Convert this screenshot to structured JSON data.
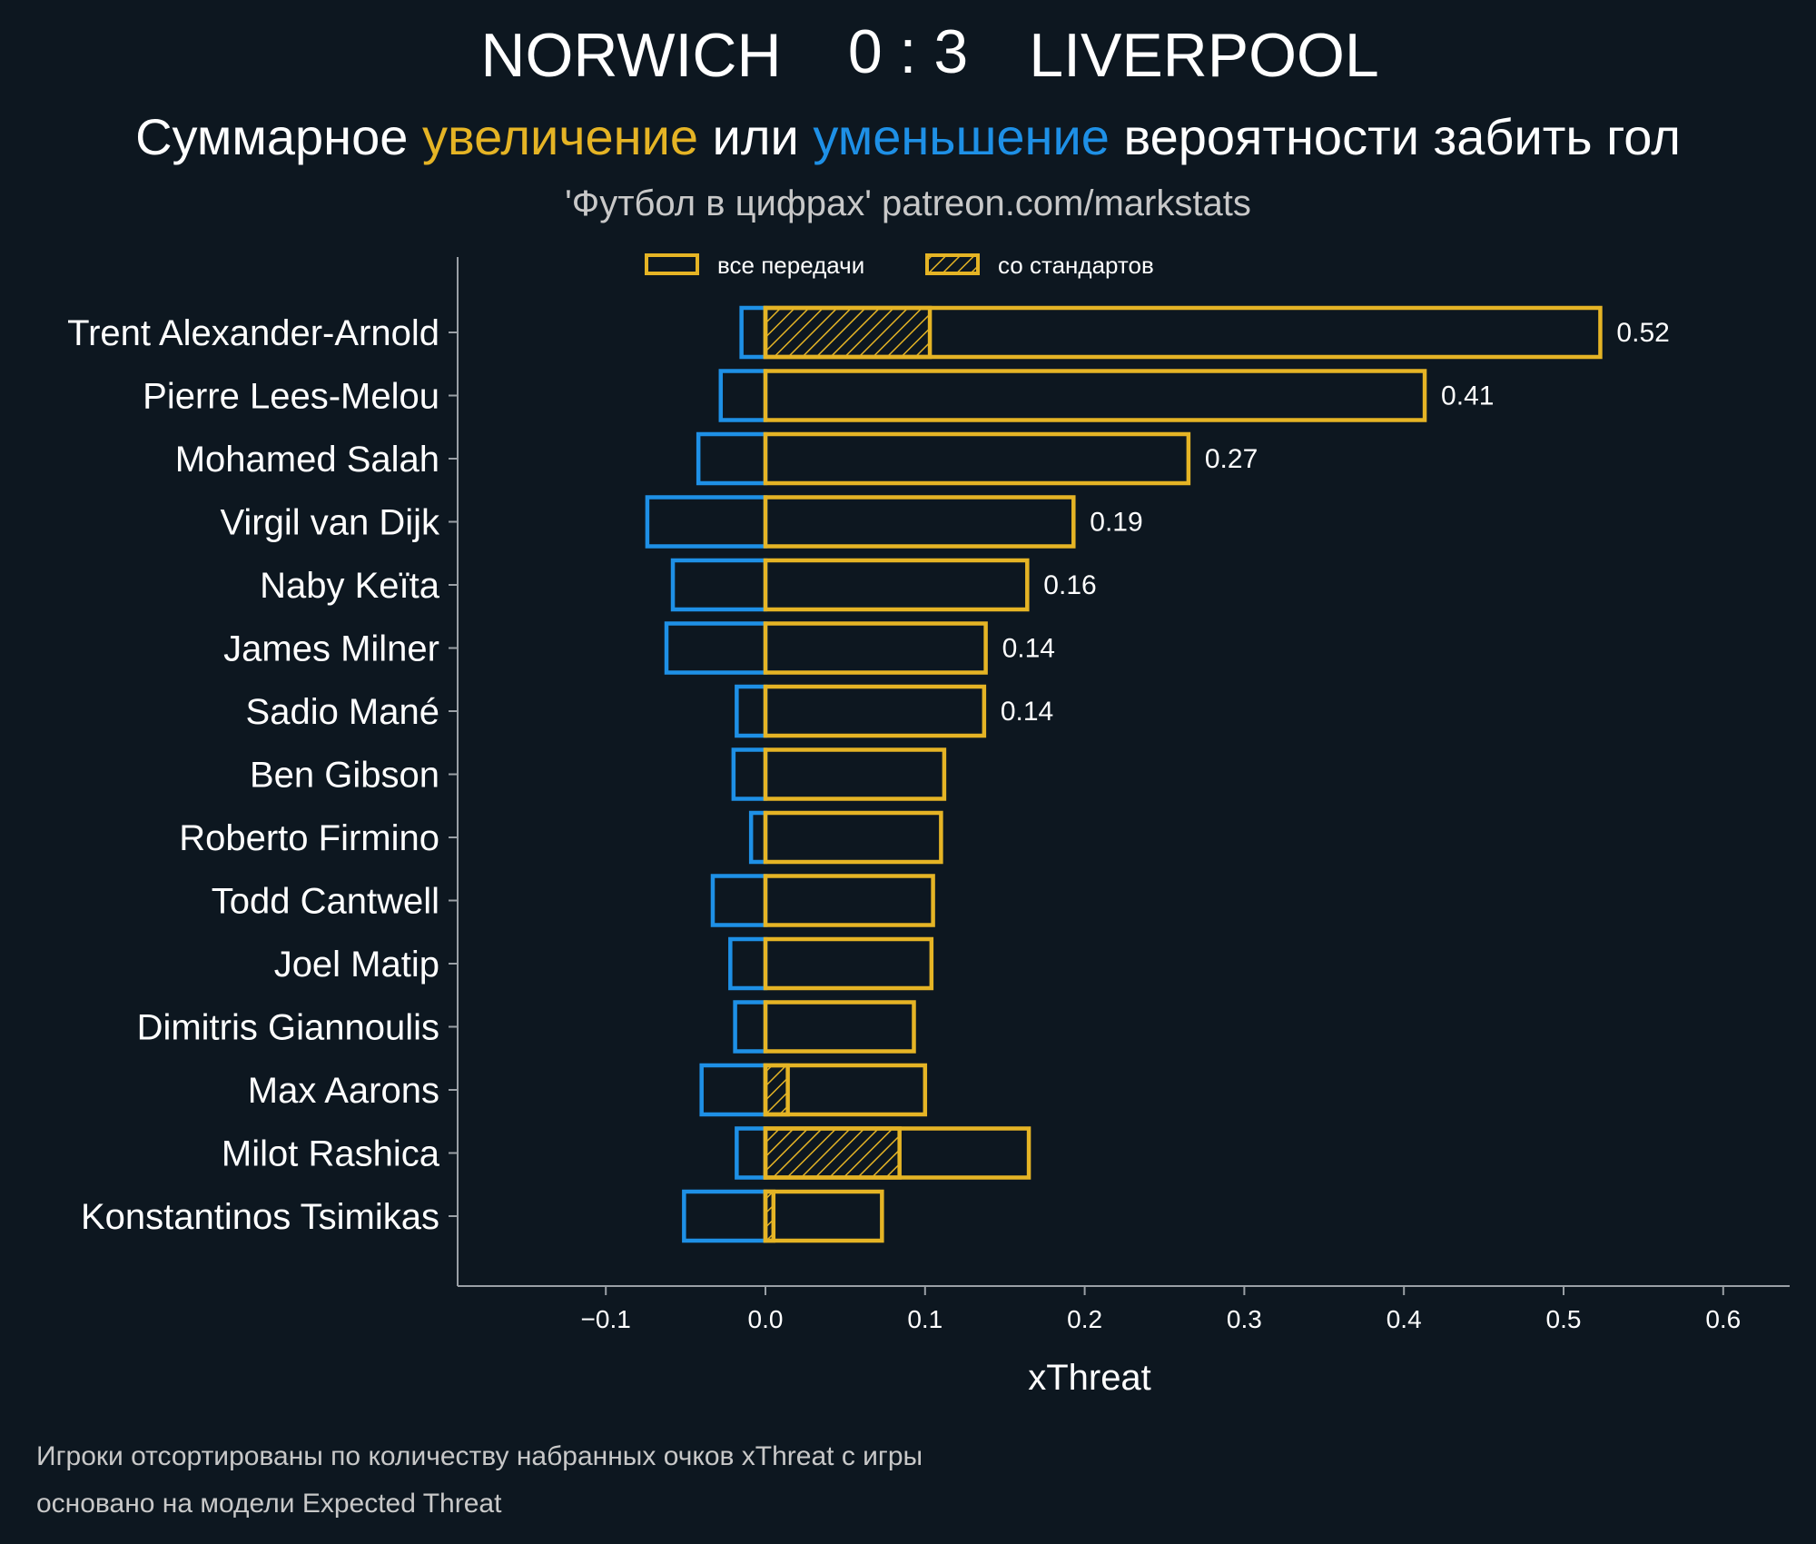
{
  "header": {
    "home_team": "NORWICH",
    "score": "0 : 3",
    "away_team": "LIVERPOOL",
    "subtitle_part1": "Суммарное ",
    "subtitle_highlight_up": "увеличение",
    "subtitle_part2": " или ",
    "subtitle_highlight_down": "уменьшение",
    "subtitle_part3": " вероятности забить гол",
    "source": "'Футбол в цифрах' patreon.com/markstats"
  },
  "footer": {
    "note1": "Игроки отсортированы по количеству набранных очков xThreat с игры",
    "note2": "основано на модели Expected Threat"
  },
  "colors": {
    "background": "#0d1720",
    "positive": "#e5b425",
    "negative": "#1e90e6",
    "text": "#ffffff",
    "muted": "#c8c8c8",
    "axis": "#9aa0a6"
  },
  "chart_data": {
    "type": "bar",
    "orientation": "horizontal",
    "xlabel": "xThreat",
    "xlim": [
      -0.19,
      0.625
    ],
    "xticks": [
      -0.1,
      0.0,
      0.1,
      0.2,
      0.3,
      0.4,
      0.5,
      0.6
    ],
    "xtick_labels": [
      "−0.1",
      "0.0",
      "0.1",
      "0.2",
      "0.3",
      "0.4",
      "0.5",
      "0.6"
    ],
    "legend": {
      "position": "top",
      "all_passes": "все передачи",
      "set_pieces": "со стандартов"
    },
    "categories": [
      "Trent Alexander-Arnold",
      "Pierre Lees-Melou",
      "Mohamed Salah",
      "Virgil van Dijk",
      "Naby Keïta",
      "James Milner",
      "Sadio Mané",
      "Ben Gibson",
      "Roberto Firmino",
      "Todd Cantwell",
      "Joel Matip",
      "Dimitris Giannoulis",
      "Max Aarons",
      "Milot Rashica",
      "Konstantinos Tsimikas"
    ],
    "series": [
      {
        "name": "все передачи (positive)",
        "values": [
          0.523,
          0.413,
          0.265,
          0.193,
          0.164,
          0.138,
          0.137,
          0.112,
          0.11,
          0.105,
          0.104,
          0.093,
          0.1,
          0.165,
          0.073
        ]
      },
      {
        "name": "все передачи (negative)",
        "values": [
          -0.015,
          -0.028,
          -0.042,
          -0.074,
          -0.058,
          -0.062,
          -0.018,
          -0.02,
          -0.009,
          -0.033,
          -0.022,
          -0.019,
          -0.04,
          -0.018,
          -0.051
        ]
      },
      {
        "name": "со стандартов",
        "values": [
          0.103,
          0,
          0,
          0,
          0,
          0,
          0,
          0,
          0,
          0,
          0,
          0,
          0.014,
          0.084,
          0.005
        ]
      }
    ],
    "value_labels": [
      "0.52",
      "0.41",
      "0.27",
      "0.19",
      "0.16",
      "0.14",
      "0.14",
      "",
      "",
      "",
      "",
      "",
      "",
      "",
      ""
    ]
  }
}
